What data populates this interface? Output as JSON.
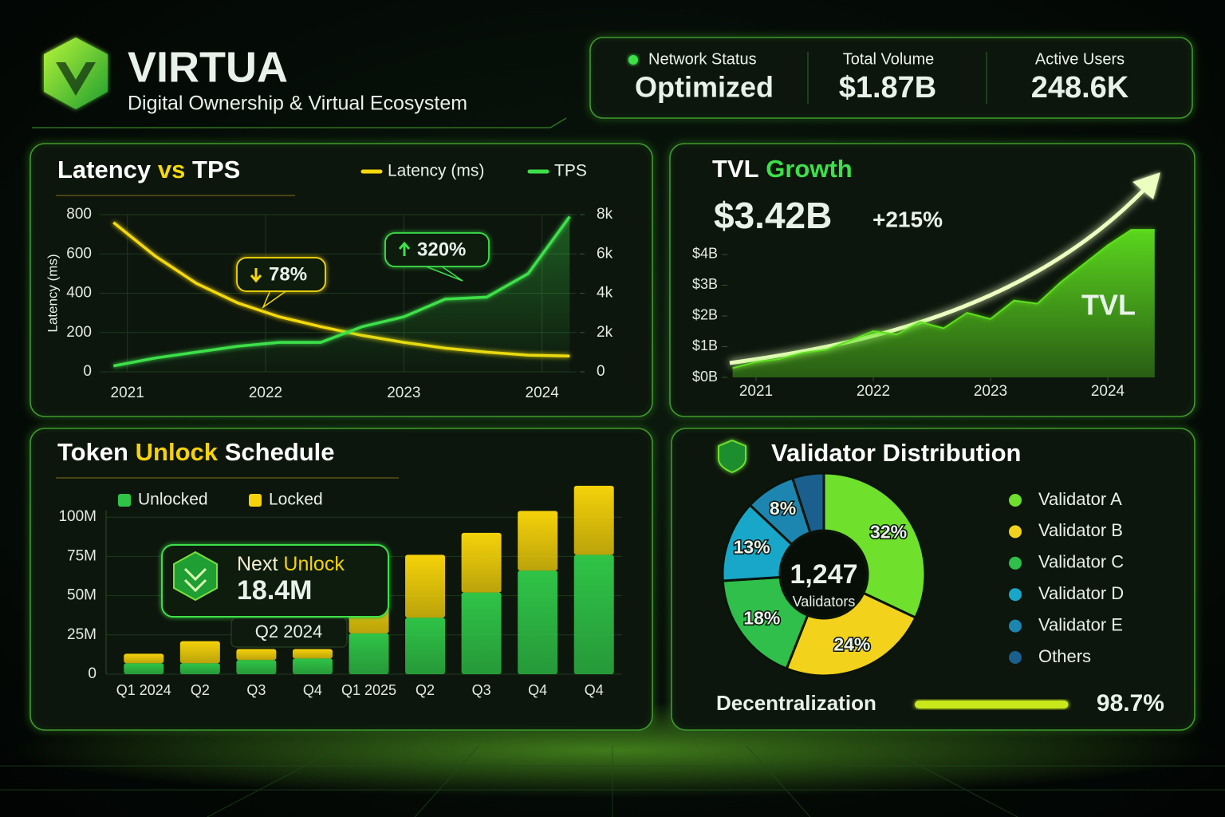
{
  "header": {
    "title": "VIRTUA",
    "subtitle": "Digital Ownership & Virtual Ecosystem"
  },
  "stats": [
    {
      "label": "Network Status",
      "value": "Optimized"
    },
    {
      "label": "Total Volume",
      "value": "$1.87B"
    },
    {
      "label": "Active Users",
      "value": "248.6K"
    }
  ],
  "chart_data": [
    {
      "type": "line",
      "title": [
        "Latency",
        "vs",
        "TPS"
      ],
      "title_highlight": 1,
      "title_highlight_color": "#f5d90a",
      "y_label": "Latency (ms)",
      "x": [
        2020.9,
        2021.2,
        2021.5,
        2021.8,
        2022.1,
        2022.4,
        2022.7,
        2023.0,
        2023.3,
        2023.6,
        2023.9,
        2024.2
      ],
      "xlim": [
        2020.8,
        2024.25
      ],
      "xticks": [
        2021,
        2022,
        2023,
        2024
      ],
      "ylim": [
        0,
        800
      ],
      "yticks": [
        0,
        200,
        400,
        600,
        800
      ],
      "y2lim": [
        0,
        8000
      ],
      "y2ticks": [
        0,
        {
          "value": 2000,
          "label": "2k"
        },
        {
          "value": 4000,
          "label": "4k"
        },
        {
          "value": 6000,
          "label": "6k"
        },
        {
          "value": 8000,
          "label": "8k"
        }
      ],
      "grid": true,
      "series": [
        {
          "name": "Latency (ms)",
          "color": "#f5d90a",
          "values": [
            760,
            590,
            450,
            350,
            280,
            230,
            185,
            150,
            120,
            100,
            85,
            80
          ]
        },
        {
          "name": "TPS",
          "color": "#3ee04a",
          "axis": "y2",
          "values": [
            300,
            700,
            1000,
            1300,
            1500,
            1500,
            2300,
            2800,
            3700,
            3800,
            5000,
            7900
          ]
        }
      ],
      "annotations": [
        {
          "text": "78%",
          "direction": "down",
          "color": "#f5d90a"
        },
        {
          "text": "320%",
          "direction": "up",
          "color": "#3ee04a"
        }
      ]
    },
    {
      "type": "area",
      "title": [
        "TVL",
        "Growth"
      ],
      "title_highlight": 1,
      "title_highlight_color": "#3ee04a",
      "headline": "$3.42B",
      "change": "+215%",
      "x": [
        2020.8,
        2021.0,
        2021.2,
        2021.4,
        2021.6,
        2021.8,
        2022.0,
        2022.2,
        2022.4,
        2022.6,
        2022.8,
        2023.0,
        2023.2,
        2023.4,
        2023.6,
        2023.8,
        2024.0,
        2024.2,
        2024.4
      ],
      "xlim": [
        2020.8,
        2024.4
      ],
      "xticks": [
        2021,
        2022,
        2023,
        2024
      ],
      "ylim": [
        0,
        5.4
      ],
      "yticks": [
        {
          "value": 0,
          "label": "$0B"
        },
        {
          "value": 1,
          "label": "$1B"
        },
        {
          "value": 2,
          "label": "$2B"
        },
        {
          "value": 3,
          "label": "$3B"
        },
        {
          "value": 4,
          "label": "$4B"
        }
      ],
      "series": [
        {
          "name": "TVL",
          "color": "#5ee01f",
          "values": [
            0.3,
            0.5,
            0.6,
            0.8,
            0.9,
            1.2,
            1.5,
            1.4,
            1.8,
            1.6,
            2.1,
            1.9,
            2.5,
            2.4,
            3.1,
            3.7,
            4.3,
            4.8,
            4.8
          ]
        }
      ]
    },
    {
      "type": "bar",
      "stacked": true,
      "title": [
        "Token",
        "Unlock",
        "Schedule"
      ],
      "title_highlight": 1,
      "title_highlight_color": "#f5d20a",
      "categories": [
        "Q1 2024",
        "Q2",
        "Q3",
        "Q4",
        "Q1 2025",
        "Q2",
        "Q3",
        "Q4",
        "Q4"
      ],
      "ylim": [
        0,
        125
      ],
      "yticks": [
        0,
        {
          "value": 25,
          "label": "25M"
        },
        {
          "value": 50,
          "label": "50M"
        },
        {
          "value": 75,
          "label": "75M"
        },
        {
          "value": 100,
          "label": "100M"
        }
      ],
      "grid": true,
      "series": [
        {
          "name": "Unlocked",
          "color": "#2fc447",
          "values": [
            7,
            7,
            9,
            10,
            26,
            36,
            52,
            66,
            76
          ]
        },
        {
          "name": "Locked",
          "color": "#f5d20a",
          "values": [
            6,
            14,
            7,
            6,
            30,
            40,
            38,
            38,
            44
          ]
        }
      ],
      "callout": {
        "title": [
          "Next",
          "Unlock"
        ],
        "title_highlight": 1,
        "title_highlight_color": "#f5d20a",
        "value": "18.4M",
        "period": "Q2 2024"
      }
    },
    {
      "type": "pie",
      "title": "Validator Distribution",
      "categories": [
        "Validator A",
        "Validator B",
        "Validator C",
        "Validator D",
        "Validator E",
        "Others"
      ],
      "values": [
        32,
        24,
        18,
        13,
        8,
        5
      ],
      "value_labels": [
        "32%",
        "24%",
        "18%",
        "13%",
        "8%",
        null
      ],
      "colors": [
        "#6fe02c",
        "#f2d21a",
        "#2fbf4a",
        "#19a7c9",
        "#1d86b0",
        "#1b5f8e"
      ],
      "center_value": "1,247",
      "center_label": "Validators",
      "decentralization": {
        "label": "Decentralization",
        "value": 98.7,
        "value_label": "98.7%"
      }
    }
  ]
}
